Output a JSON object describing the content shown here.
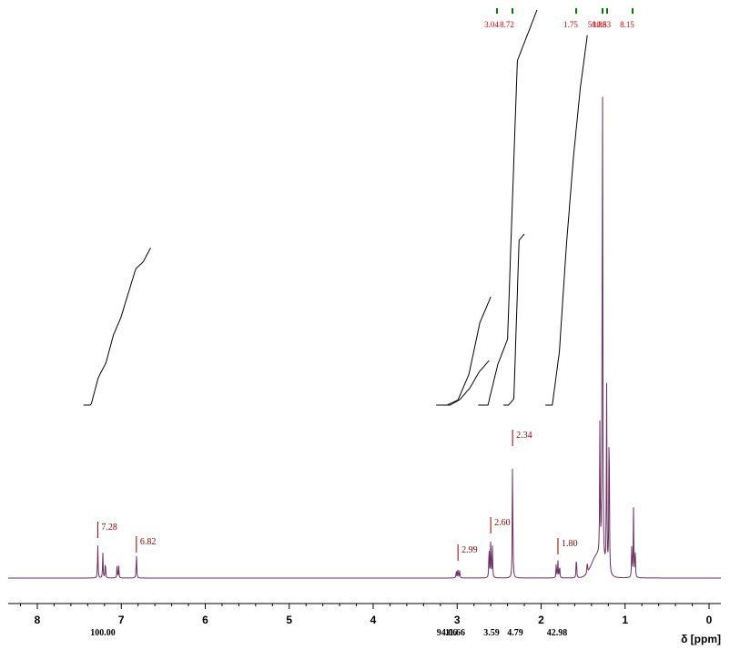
{
  "chart_data": {
    "type": "line",
    "title": "",
    "xlabel": "δ [ppm]",
    "ylabel": "",
    "xlim": [
      8.3,
      -0.1
    ],
    "x_ticks": [
      "8",
      "7",
      "6",
      "5",
      "4",
      "3",
      "2",
      "1",
      "0"
    ],
    "colors": {
      "spectrum": "#6b2f63",
      "peak_label": "#8b0000",
      "integral_curve": "#000000",
      "top_marker": "#008000",
      "top_value": "#e00000"
    },
    "peak_labels": [
      {
        "ppm": 7.28,
        "text": "7.28"
      },
      {
        "ppm": 6.82,
        "text": "6.82"
      },
      {
        "ppm": 2.99,
        "text": "2.99"
      },
      {
        "ppm": 2.6,
        "text": "2.60"
      },
      {
        "ppm": 2.34,
        "text": "2.34"
      },
      {
        "ppm": 1.8,
        "text": "1.80"
      }
    ],
    "integrals_bottom": [
      {
        "from": 7.45,
        "to": 6.65,
        "text": "100.00"
      },
      {
        "from": 3.25,
        "to": 2.85,
        "text": "94.06"
      },
      {
        "from": 3.2,
        "to": 2.8,
        "text": "11.66"
      },
      {
        "from": 2.75,
        "to": 2.45,
        "text": "3.59"
      },
      {
        "from": 2.45,
        "to": 2.2,
        "text": "4.79"
      },
      {
        "from": 1.95,
        "to": 1.45,
        "text": "42.98"
      }
    ],
    "integrals_top": [
      {
        "ppm": 2.62,
        "text": "3.04"
      },
      {
        "ppm": 2.34,
        "text": "8.72"
      },
      {
        "ppm": 1.58,
        "text": "1.75"
      },
      {
        "ppm": 1.27,
        "text": "58.88"
      },
      {
        "ppm": 1.22,
        "text": "10.53"
      },
      {
        "ppm": 0.9,
        "text": "8.15"
      }
    ],
    "spectrum_peaks": [
      {
        "ppm": 7.28,
        "height": 38
      },
      {
        "ppm": 7.22,
        "height": 28
      },
      {
        "ppm": 7.19,
        "height": 20
      },
      {
        "ppm": 7.05,
        "height": 15
      },
      {
        "ppm": 7.03,
        "height": 13
      },
      {
        "ppm": 6.82,
        "height": 29
      },
      {
        "ppm": 3.01,
        "height": 9
      },
      {
        "ppm": 2.99,
        "height": 11
      },
      {
        "ppm": 2.97,
        "height": 8
      },
      {
        "ppm": 2.62,
        "height": 38
      },
      {
        "ppm": 2.6,
        "height": 46
      },
      {
        "ppm": 2.58,
        "height": 34
      },
      {
        "ppm": 2.34,
        "height": 141
      },
      {
        "ppm": 1.82,
        "height": 16
      },
      {
        "ppm": 1.8,
        "height": 19
      },
      {
        "ppm": 1.78,
        "height": 15
      },
      {
        "ppm": 1.58,
        "height": 27
      },
      {
        "ppm": 1.45,
        "height": 14
      },
      {
        "ppm": 1.3,
        "height": 150
      },
      {
        "ppm": 1.27,
        "height": 630
      },
      {
        "ppm": 1.22,
        "height": 205
      },
      {
        "ppm": 1.19,
        "height": 200
      },
      {
        "ppm": 0.92,
        "height": 38
      },
      {
        "ppm": 0.9,
        "height": 76
      },
      {
        "ppm": 0.88,
        "height": 34
      }
    ],
    "integral_curves": [
      {
        "from": 7.45,
        "to": 6.65,
        "steps": [
          0.0,
          0.4,
          0.2,
          0.4,
          0.25,
          0.35,
          0.35,
          0.1,
          0.2,
          0.55
        ],
        "rise": 0.58
      },
      {
        "from": 3.25,
        "to": 2.6,
        "steps": [
          0.0,
          0.02,
          0.1,
          0.2,
          0.1,
          0.05
        ],
        "rise": 0.42
      },
      {
        "from": 3.2,
        "to": 2.62,
        "steps": [
          0.0,
          0.05,
          0.1,
          0.15,
          0.1,
          0.05
        ],
        "rise": 0.49
      },
      {
        "from": 2.75,
        "to": 2.05,
        "steps": [
          0.0,
          0.08,
          0.05,
          0.55,
          0.05,
          0.05,
          0.02
        ],
        "rise": 1.0
      },
      {
        "from": 2.45,
        "to": 2.2,
        "steps": [
          0.0,
          0.02,
          0.5,
          0.02,
          0.02
        ],
        "rise": 0.49
      },
      {
        "from": 1.95,
        "to": 1.45,
        "steps": [
          0.0,
          0.15,
          0.3,
          0.25,
          0.2,
          0.15,
          0.1
        ],
        "rise": 1.1
      }
    ]
  }
}
